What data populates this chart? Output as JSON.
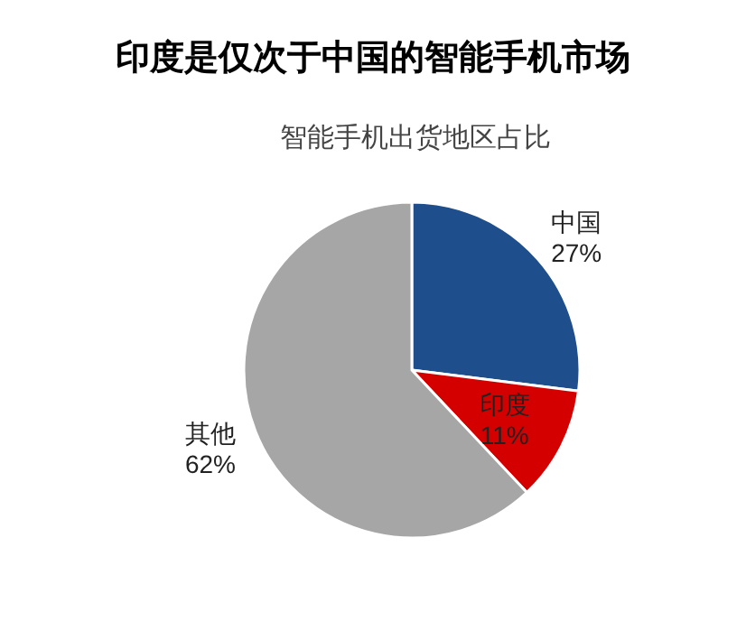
{
  "chart_data": {
    "type": "pie",
    "title": "印度是仅次于中国的智能手机市场",
    "subtitle": "智能手机出货地区占比",
    "categories": [
      "中国",
      "印度",
      "其他"
    ],
    "values": [
      27,
      11,
      62
    ],
    "colors": [
      "#1f4e8c",
      "#d40000",
      "#a6a6a6"
    ],
    "value_labels": [
      "27%",
      "11%",
      "62%"
    ]
  }
}
